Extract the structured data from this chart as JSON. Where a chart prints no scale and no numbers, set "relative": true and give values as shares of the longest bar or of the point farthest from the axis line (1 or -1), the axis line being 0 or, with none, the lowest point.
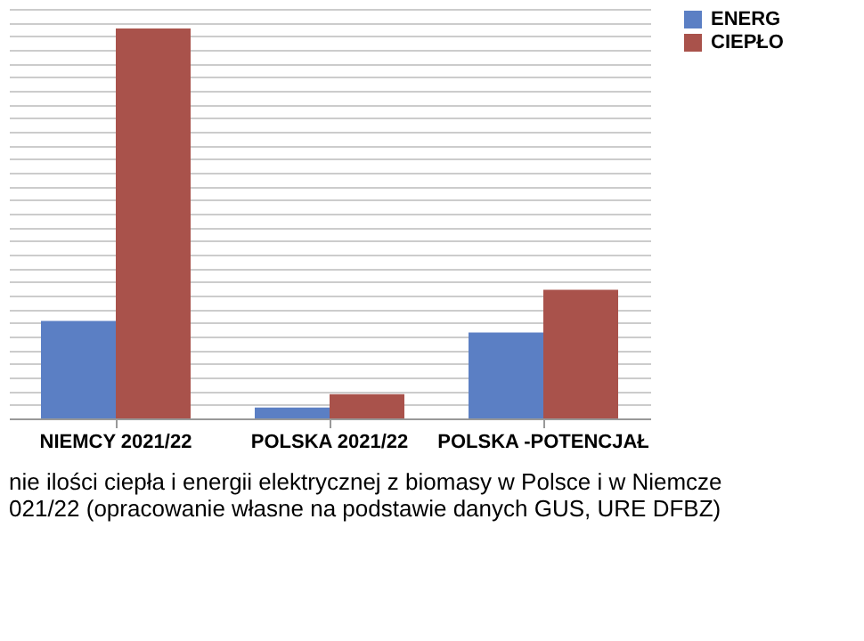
{
  "chart_data": {
    "type": "bar",
    "relative": true,
    "categories": [
      "NIEMCY 2021/22",
      "POLSKA 2021/22",
      "POLSKA -POTENCJAŁ"
    ],
    "series": [
      {
        "name": "ENERG",
        "color": "#5b7fc4",
        "values": [
          0.25,
          0.028,
          0.22
        ]
      },
      {
        "name": "CIEPŁO",
        "color": "#a9524b",
        "values": [
          1,
          0.062,
          0.33
        ]
      }
    ],
    "grid": "y",
    "legend": "right",
    "annotations": [
      "nie ilości ciepła i energii elektrycznej z biomasy w Polsce i w Niemcze",
      "021/22 (opracowanie własne na podstawie danych GUS, URE DFBZ)"
    ]
  }
}
